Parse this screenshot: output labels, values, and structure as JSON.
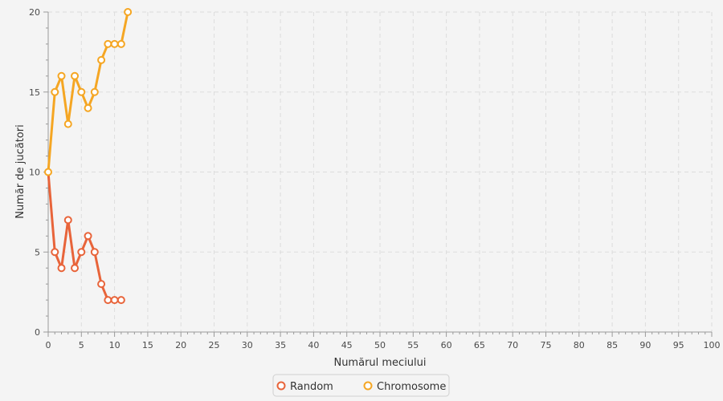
{
  "chart_data": {
    "type": "line",
    "xlabel": "Numărul meciului",
    "ylabel": "Număr de jucători",
    "xlim": [
      0,
      100
    ],
    "ylim": [
      0,
      20
    ],
    "x_ticks": [
      0,
      5,
      10,
      15,
      20,
      25,
      30,
      35,
      40,
      45,
      50,
      55,
      60,
      65,
      70,
      75,
      80,
      85,
      90,
      95,
      100
    ],
    "y_ticks": [
      0,
      5,
      10,
      15,
      20
    ],
    "grid": true,
    "legend_position": "bottom-center",
    "series": [
      {
        "name": "Random",
        "color": "#e8643a",
        "x": [
          0,
          1,
          2,
          3,
          4,
          5,
          6,
          7,
          8,
          9,
          10,
          11
        ],
        "y": [
          10,
          5,
          4,
          7,
          4,
          5,
          6,
          5,
          3,
          2,
          2,
          2
        ]
      },
      {
        "name": "Chromosome",
        "color": "#f5a623",
        "x": [
          0,
          1,
          2,
          3,
          4,
          5,
          6,
          7,
          8,
          9,
          10,
          11,
          12
        ],
        "y": [
          10,
          15,
          16,
          13,
          16,
          15,
          14,
          15,
          17,
          18,
          18,
          18,
          20
        ]
      }
    ]
  }
}
